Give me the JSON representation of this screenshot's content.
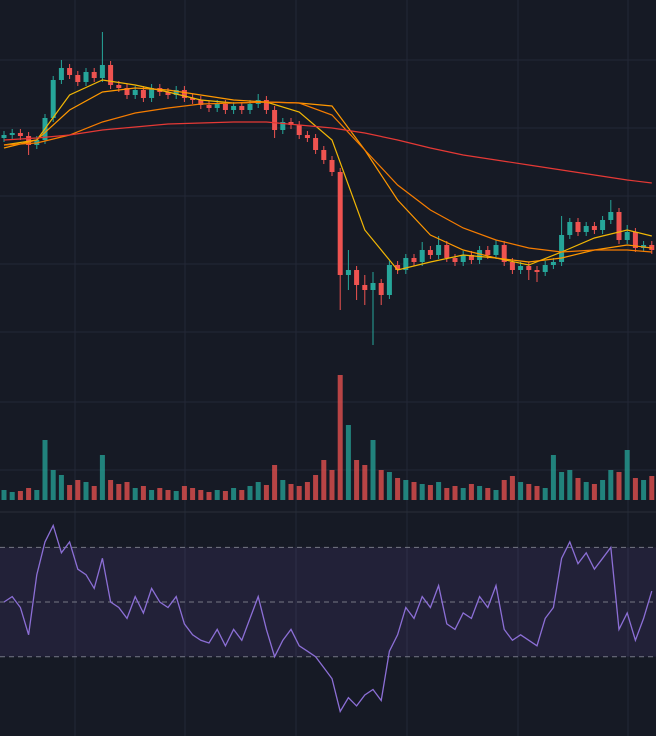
{
  "chart_data": [
    {
      "type": "candlestick",
      "ylim": [
        0,
        360
      ],
      "yticks": [
        28,
        96,
        164,
        232,
        300
      ],
      "grid": true,
      "up_color": "#26a69a",
      "down_color": "#ef5350",
      "open": [
        222,
        225,
        227,
        224,
        215,
        220,
        242,
        280,
        292,
        285,
        278,
        288,
        282,
        295,
        275,
        272,
        265,
        270,
        262,
        272,
        268,
        265,
        270,
        262,
        260,
        255,
        252,
        256,
        250,
        254,
        250,
        256,
        260,
        250,
        230,
        238,
        235,
        225,
        222,
        210,
        200,
        188,
        85,
        90,
        75,
        70,
        77,
        65,
        95,
        90,
        102,
        98,
        110,
        105,
        115,
        102,
        98,
        105,
        100,
        110,
        105,
        115,
        98,
        90,
        94,
        90,
        88,
        95,
        98,
        125,
        138,
        128,
        134,
        130,
        140,
        148,
        120,
        128,
        112,
        115
      ],
      "high": [
        229,
        231,
        231,
        228,
        224,
        246,
        284,
        300,
        296,
        289,
        292,
        292,
        328,
        299,
        279,
        276,
        274,
        274,
        276,
        276,
        272,
        274,
        274,
        266,
        264,
        259,
        260,
        260,
        258,
        258,
        260,
        266,
        264,
        254,
        242,
        242,
        239,
        229,
        226,
        214,
        204,
        192,
        110,
        94,
        85,
        88,
        81,
        99,
        99,
        106,
        106,
        118,
        114,
        124,
        119,
        106,
        109,
        109,
        114,
        114,
        120,
        119,
        102,
        98,
        98,
        94,
        99,
        102,
        144,
        142,
        142,
        138,
        138,
        144,
        160,
        152,
        135,
        132,
        119,
        119
      ],
      "low": [
        218,
        221,
        220,
        205,
        211,
        216,
        238,
        276,
        281,
        274,
        274,
        278,
        278,
        271,
        268,
        261,
        261,
        258,
        258,
        264,
        261,
        261,
        258,
        256,
        251,
        248,
        248,
        246,
        246,
        246,
        246,
        252,
        246,
        222,
        226,
        231,
        221,
        218,
        206,
        196,
        184,
        50,
        70,
        60,
        55,
        15,
        55,
        61,
        86,
        86,
        94,
        94,
        101,
        101,
        98,
        94,
        94,
        96,
        96,
        101,
        101,
        94,
        86,
        86,
        80,
        78,
        84,
        91,
        94,
        121,
        124,
        124,
        126,
        126,
        136,
        116,
        116,
        108,
        108,
        106
      ],
      "close": [
        225,
        227,
        224,
        215,
        220,
        242,
        280,
        292,
        285,
        278,
        288,
        282,
        295,
        275,
        272,
        265,
        270,
        262,
        272,
        268,
        265,
        270,
        262,
        260,
        255,
        252,
        256,
        250,
        254,
        250,
        256,
        260,
        250,
        230,
        238,
        235,
        225,
        222,
        210,
        200,
        188,
        85,
        90,
        75,
        70,
        77,
        65,
        95,
        90,
        102,
        98,
        110,
        105,
        115,
        102,
        98,
        105,
        100,
        110,
        105,
        115,
        98,
        90,
        94,
        90,
        88,
        95,
        98,
        125,
        138,
        128,
        134,
        130,
        140,
        148,
        120,
        128,
        112,
        115,
        110
      ],
      "series": [
        {
          "color": "#f2b705",
          "x": [
            0,
            4,
            8,
            12,
            16,
            20,
            24,
            28,
            32,
            36,
            40,
            44,
            48,
            52,
            56,
            60,
            64,
            68,
            72,
            76,
            79
          ],
          "values": [
            215,
            220,
            265,
            280,
            275,
            268,
            260,
            257,
            258,
            248,
            220,
            130,
            90,
            98,
            105,
            102,
            95,
            108,
            122,
            130,
            124
          ]
        },
        {
          "color": "#ff9800",
          "x": [
            0,
            4,
            8,
            12,
            16,
            20,
            24,
            28,
            32,
            36,
            40,
            44,
            48,
            52,
            56,
            60,
            64,
            68,
            72,
            76,
            79
          ],
          "values": [
            212,
            220,
            250,
            268,
            272,
            270,
            265,
            260,
            258,
            257,
            254,
            210,
            160,
            125,
            110,
            102,
            98,
            102,
            110,
            115,
            112
          ]
        },
        {
          "color": "#f57c00",
          "x": [
            0,
            4,
            8,
            12,
            16,
            20,
            24,
            28,
            32,
            36,
            40,
            44,
            48,
            52,
            56,
            60,
            64,
            68,
            72,
            76,
            79
          ],
          "values": [
            215,
            217,
            225,
            238,
            247,
            252,
            256,
            257,
            258,
            257,
            245,
            210,
            175,
            150,
            132,
            120,
            112,
            108,
            110,
            110,
            108
          ]
        },
        {
          "color": "#e53935",
          "x": [
            0,
            4,
            8,
            12,
            16,
            20,
            24,
            28,
            32,
            36,
            40,
            44,
            48,
            52,
            56,
            60,
            64,
            68,
            72,
            76,
            79
          ],
          "values": [
            220,
            222,
            225,
            230,
            233,
            236,
            237,
            238,
            238,
            235,
            232,
            227,
            220,
            212,
            205,
            200,
            195,
            190,
            185,
            180,
            177
          ]
        }
      ]
    },
    {
      "type": "bar",
      "ylim": [
        0,
        130
      ],
      "yticks": [
        30,
        98
      ],
      "grid": true,
      "values": [
        10,
        8,
        9,
        12,
        10,
        60,
        30,
        25,
        15,
        20,
        18,
        14,
        45,
        20,
        16,
        18,
        12,
        14,
        10,
        12,
        10,
        9,
        14,
        12,
        10,
        8,
        10,
        9,
        12,
        10,
        14,
        18,
        15,
        35,
        20,
        16,
        14,
        18,
        25,
        40,
        30,
        125,
        75,
        40,
        35,
        60,
        30,
        28,
        22,
        20,
        18,
        16,
        15,
        18,
        12,
        14,
        12,
        16,
        14,
        12,
        10,
        20,
        24,
        18,
        16,
        14,
        12,
        45,
        28,
        30,
        22,
        18,
        16,
        20,
        30,
        28,
        50,
        22,
        20,
        24
      ]
    },
    {
      "type": "line",
      "ylim": [
        1,
        80
      ],
      "levels": [
        30,
        50,
        70
      ],
      "band": [
        30,
        70
      ],
      "color": "#8c6fd6",
      "band_color": "#7e57c2",
      "values": [
        50,
        52,
        48,
        38,
        60,
        72,
        78,
        68,
        72,
        62,
        60,
        55,
        66,
        50,
        48,
        44,
        52,
        46,
        55,
        50,
        48,
        52,
        42,
        38,
        36,
        35,
        40,
        34,
        40,
        36,
        44,
        52,
        40,
        30,
        36,
        40,
        34,
        32,
        30,
        26,
        22,
        10,
        15,
        12,
        16,
        18,
        14,
        32,
        38,
        48,
        44,
        52,
        48,
        56,
        42,
        40,
        46,
        44,
        52,
        48,
        56,
        40,
        36,
        38,
        36,
        34,
        44,
        48,
        66,
        72,
        64,
        68,
        62,
        66,
        70,
        40,
        46,
        36,
        44,
        54
      ]
    }
  ]
}
